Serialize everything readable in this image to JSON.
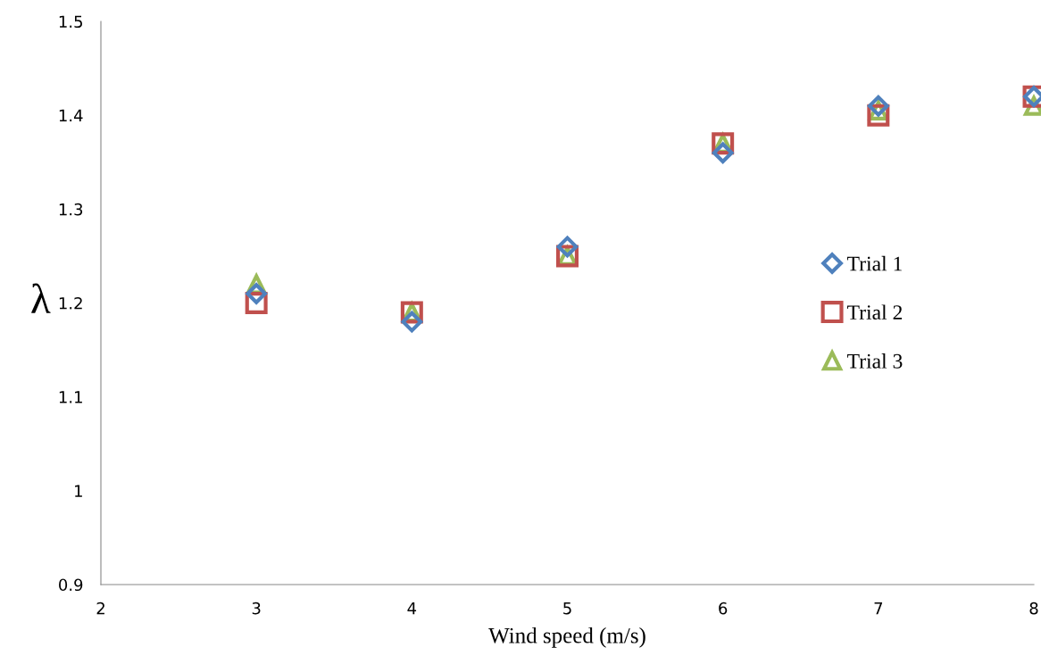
{
  "chart_data": {
    "type": "scatter",
    "xlabel": "Wind speed (m/s)",
    "ylabel": "λ",
    "x": [
      3,
      4,
      5,
      6,
      7,
      8
    ],
    "series": [
      {
        "name": "Trial 1",
        "color": "#4f81bd",
        "marker": "diamond",
        "values": [
          1.21,
          1.18,
          1.26,
          1.36,
          1.41,
          1.42
        ]
      },
      {
        "name": "Trial 2",
        "color": "#c0504d",
        "marker": "square",
        "values": [
          1.2,
          1.19,
          1.25,
          1.37,
          1.4,
          1.42
        ]
      },
      {
        "name": "Trial 3",
        "color": "#9bbb59",
        "marker": "triangle",
        "values": [
          1.22,
          1.19,
          1.25,
          1.37,
          1.405,
          1.41
        ]
      }
    ],
    "xlim": [
      2,
      8
    ],
    "xticks": [
      2,
      3,
      4,
      5,
      6,
      7,
      8
    ],
    "ylim": [
      0.9,
      1.5
    ],
    "yticks": [
      0.9,
      1,
      1.1,
      1.2,
      1.3,
      1.4,
      1.5
    ],
    "grid": false,
    "legend": "right"
  }
}
